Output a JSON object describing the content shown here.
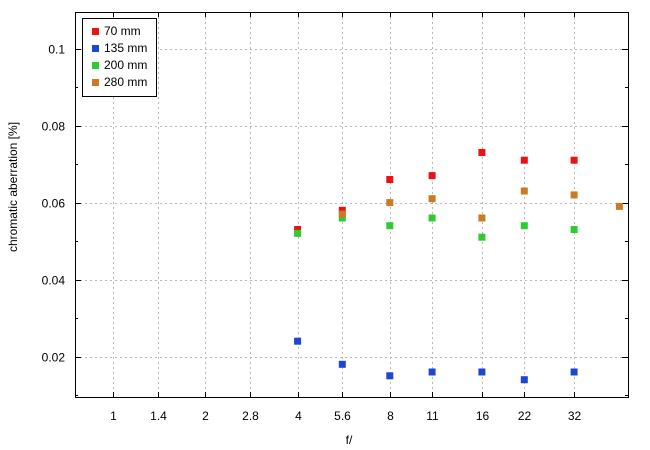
{
  "chart_data": {
    "type": "scatter",
    "title": "",
    "xlabel": "f/",
    "ylabel": "chromatic  aberration [%]",
    "x_scale": "log2",
    "x_ticks": [
      "1",
      "1.4",
      "2",
      "2.8",
      "4",
      "5.6",
      "8",
      "11",
      "16",
      "22",
      "32"
    ],
    "x_tick_values": [
      1,
      1.4,
      2,
      2.8,
      4,
      5.6,
      8,
      11,
      16,
      22,
      32
    ],
    "xlim": [
      0.75,
      48
    ],
    "ylim": [
      0.0095,
      0.1095
    ],
    "y_ticks": [
      "0.02",
      "0.04",
      "0.06",
      "0.08",
      "0.1"
    ],
    "y_tick_values": [
      0.02,
      0.04,
      0.06,
      0.08,
      0.1
    ],
    "y_minor_tick_values": [
      0.01,
      0.03,
      0.05,
      0.07,
      0.09
    ],
    "grid": true,
    "legend_position": "top-left",
    "series": [
      {
        "name": "70 mm",
        "color": "#ee1111",
        "points": [
          [
            4,
            0.053
          ],
          [
            5.6,
            0.058
          ],
          [
            8,
            0.066
          ],
          [
            11,
            0.067
          ],
          [
            16,
            0.073
          ],
          [
            22,
            0.071
          ],
          [
            32,
            0.071
          ]
        ]
      },
      {
        "name": "135 mm",
        "color": "#1f45d6",
        "points": [
          [
            4,
            0.024
          ],
          [
            5.6,
            0.018
          ],
          [
            8,
            0.015
          ],
          [
            11,
            0.016
          ],
          [
            16,
            0.016
          ],
          [
            22,
            0.014
          ],
          [
            32,
            0.016
          ]
        ]
      },
      {
        "name": "200 mm",
        "color": "#2ecc2e",
        "points": [
          [
            4,
            0.052
          ],
          [
            5.6,
            0.056
          ],
          [
            8,
            0.054
          ],
          [
            11,
            0.056
          ],
          [
            16,
            0.051
          ],
          [
            22,
            0.054
          ],
          [
            32,
            0.053
          ]
        ]
      },
      {
        "name": "280 mm",
        "color": "#cc7a22",
        "points": [
          [
            5.6,
            0.057
          ],
          [
            8,
            0.06
          ],
          [
            11,
            0.061
          ],
          [
            16,
            0.056
          ],
          [
            22,
            0.063
          ],
          [
            32,
            0.062
          ],
          [
            45,
            0.059
          ]
        ]
      }
    ]
  }
}
